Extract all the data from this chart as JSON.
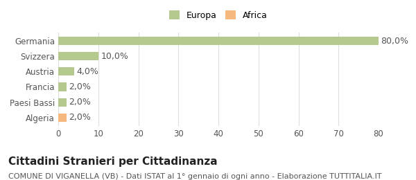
{
  "categories": [
    "Algeria",
    "Paesi Bassi",
    "Francia",
    "Austria",
    "Svizzera",
    "Germania"
  ],
  "values": [
    2.0,
    2.0,
    2.0,
    4.0,
    10.0,
    80.0
  ],
  "bar_colors": [
    "#f5b97f",
    "#b5c98e",
    "#b5c98e",
    "#b5c98e",
    "#b5c98e",
    "#b5c98e"
  ],
  "bar_labels": [
    "2,0%",
    "2,0%",
    "2,0%",
    "4,0%",
    "10,0%",
    "80,0%"
  ],
  "legend_labels": [
    "Europa",
    "Africa"
  ],
  "legend_colors": [
    "#b5c98e",
    "#f5b97f"
  ],
  "xlim": [
    0,
    80
  ],
  "xticks": [
    0,
    10,
    20,
    30,
    40,
    50,
    60,
    70,
    80
  ],
  "title": "Cittadini Stranieri per Cittadinanza",
  "subtitle": "COMUNE DI VIGANELLA (VB) - Dati ISTAT al 1° gennaio di ogni anno - Elaborazione TUTTITALIA.IT",
  "bg_color": "#ffffff",
  "grid_color": "#dddddd",
  "title_fontsize": 11,
  "subtitle_fontsize": 8,
  "label_fontsize": 9,
  "tick_fontsize": 8.5
}
